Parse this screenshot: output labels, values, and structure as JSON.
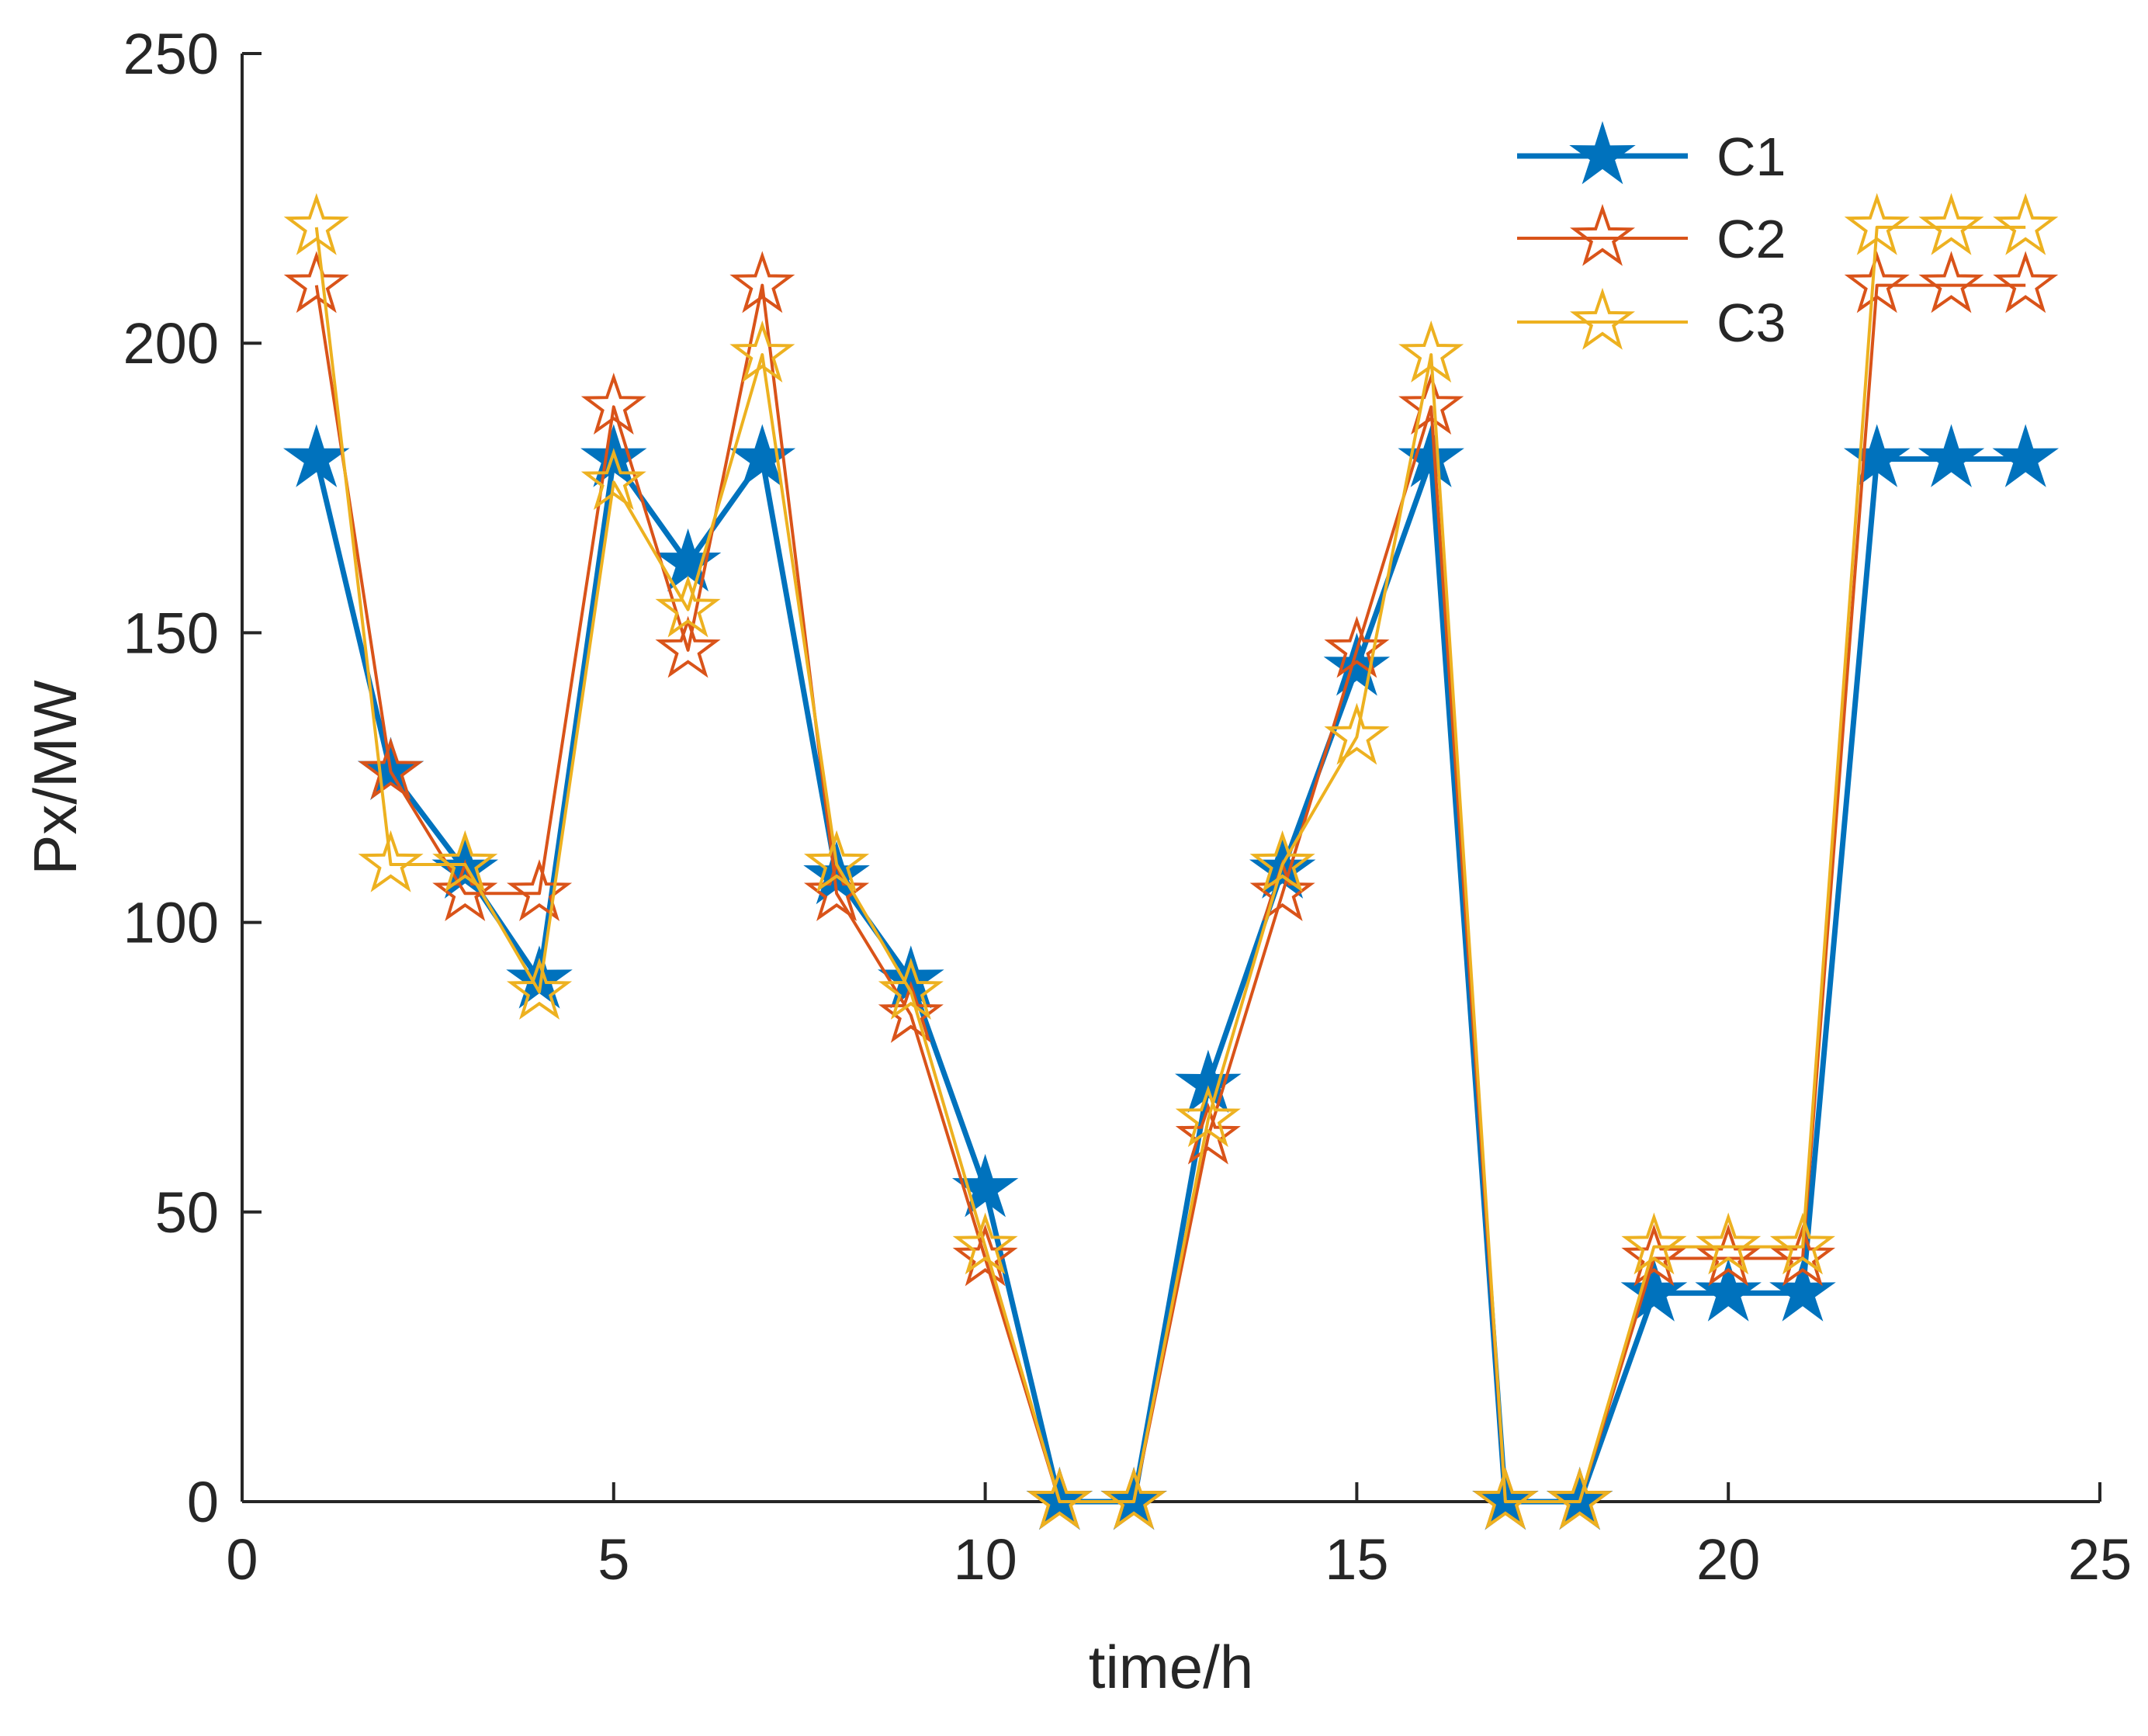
{
  "chart_data": {
    "type": "line",
    "title": "",
    "xlabel": "time/h",
    "ylabel": "Px/MW",
    "xlim": [
      0,
      25
    ],
    "ylim": [
      0,
      250
    ],
    "xticks": [
      0,
      5,
      10,
      15,
      20,
      25
    ],
    "yticks": [
      0,
      50,
      100,
      150,
      200,
      250
    ],
    "xtick_labels": [
      "0",
      "5",
      "10",
      "15",
      "20",
      "25"
    ],
    "ytick_labels": [
      "0",
      "50",
      "100",
      "150",
      "200",
      "250"
    ],
    "grid": false,
    "legend_position": "top-right",
    "x": [
      1,
      2,
      3,
      4,
      5,
      6,
      7,
      8,
      9,
      10,
      11,
      12,
      13,
      14,
      15,
      16,
      17,
      18,
      19,
      20,
      21,
      22,
      23,
      24
    ],
    "series": [
      {
        "name": "C1",
        "color": "#0072BD",
        "marker": "filled-star",
        "values": [
          180,
          126,
          109,
          90,
          180,
          162,
          180,
          108,
          90,
          54,
          0,
          0,
          72,
          109,
          144,
          180,
          0,
          0,
          36,
          36,
          36,
          180,
          180,
          180
        ]
      },
      {
        "name": "C2",
        "color": "#D95319",
        "marker": "open-star",
        "values": [
          210,
          126,
          105,
          105,
          189,
          147,
          210,
          105,
          84,
          42,
          0,
          0,
          63,
          105,
          147,
          189,
          0,
          0,
          42,
          42,
          42,
          210,
          210,
          210
        ]
      },
      {
        "name": "C3",
        "color": "#EDB120",
        "marker": "open-star",
        "values": [
          220,
          110,
          110,
          88,
          176,
          154,
          198,
          110,
          88,
          44,
          0,
          0,
          66,
          110,
          132,
          198,
          0,
          0,
          44,
          44,
          44,
          220,
          220,
          220
        ]
      }
    ]
  }
}
